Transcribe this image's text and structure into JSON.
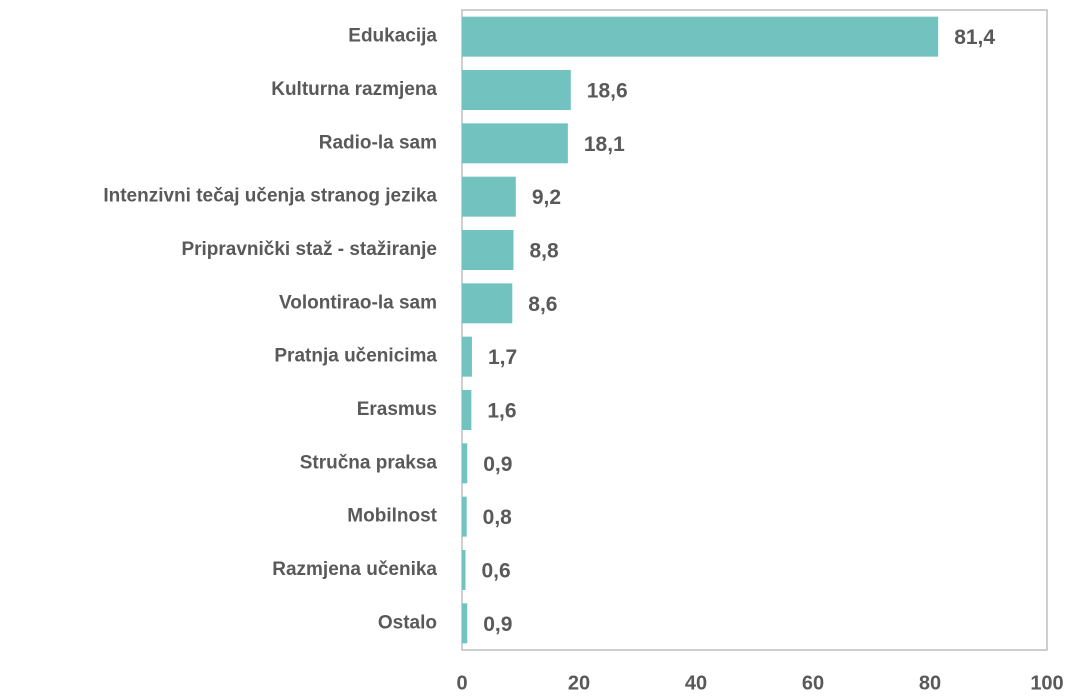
{
  "chart_data": {
    "type": "bar",
    "orientation": "horizontal",
    "categories": [
      "Edukacija",
      "Kulturna razmjena",
      "Radio-la sam",
      "Intenzivni tečaj učenja stranog jezika",
      "Pripravnički staž - stažiranje",
      "Volontirao-la sam",
      "Pratnja učenicima",
      "Erasmus",
      "Stručna praksa",
      "Mobilnost",
      "Razmjena učenika",
      "Ostalo"
    ],
    "values": [
      81.4,
      18.6,
      18.1,
      9.2,
      8.8,
      8.6,
      1.7,
      1.6,
      0.9,
      0.8,
      0.6,
      0.9
    ],
    "value_labels": [
      "81,4",
      "18,6",
      "18,1",
      "9,2",
      "8,8",
      "8,6",
      "1,7",
      "1,6",
      "0,9",
      "0,8",
      "0,6",
      "0,9"
    ],
    "color": "#72c3c0",
    "xlim": [
      0,
      100
    ],
    "xticks": [
      0,
      20,
      40,
      60,
      80,
      100
    ],
    "grid": false
  }
}
